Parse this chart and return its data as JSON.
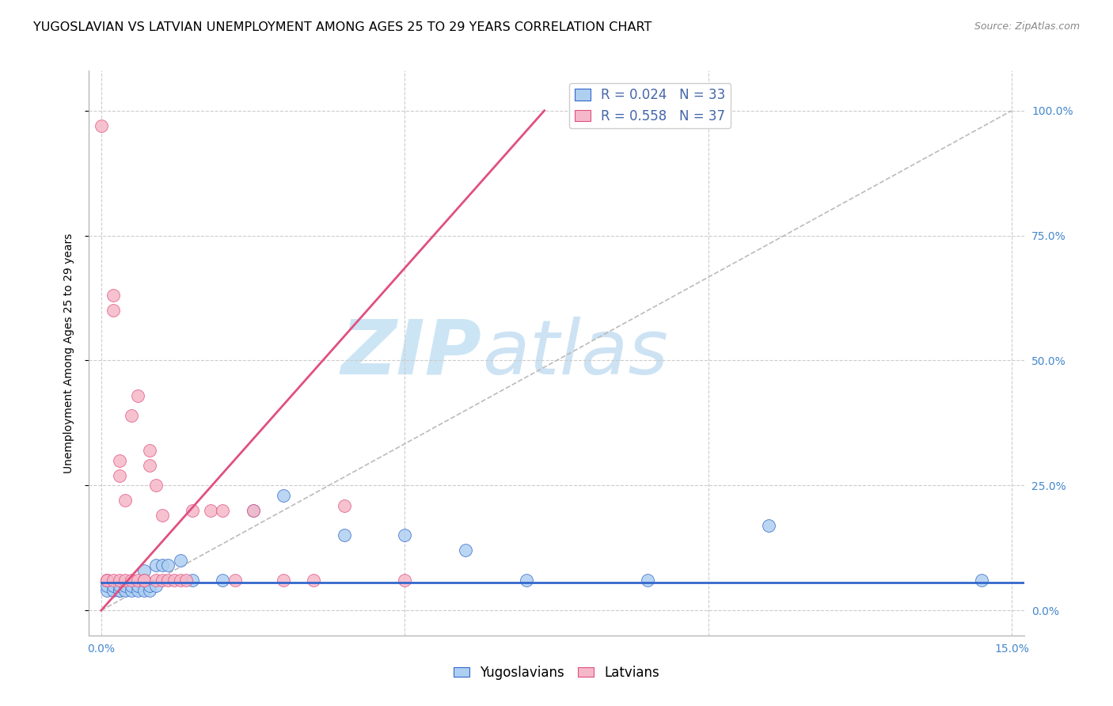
{
  "title": "YUGOSLAVIAN VS LATVIAN UNEMPLOYMENT AMONG AGES 25 TO 29 YEARS CORRELATION CHART",
  "source": "Source: ZipAtlas.com",
  "ylabel_label": "Unemployment Among Ages 25 to 29 years",
  "ylabel_ticks": [
    "0.0%",
    "25.0%",
    "50.0%",
    "75.0%",
    "100.0%"
  ],
  "ylabel_tick_values": [
    0.0,
    0.25,
    0.5,
    0.75,
    1.0
  ],
  "xlabel_ticks": [
    "0.0%",
    "15.0%"
  ],
  "xlim": [
    -0.002,
    0.152
  ],
  "ylim": [
    -0.05,
    1.08
  ],
  "legend_labels": [
    "Yugoslavians",
    "Latvians"
  ],
  "legend_R": [
    0.024,
    0.558
  ],
  "legend_N": [
    33,
    37
  ],
  "scatter_color_yug": "#aecff0",
  "scatter_color_lat": "#f5b8c8",
  "line_color_yug": "#3366cc",
  "line_color_lat": "#e05080",
  "diagonal_color": "#bbbbbb",
  "watermark_zip": "ZIP",
  "watermark_atlas": "atlas",
  "watermark_color": "#cce5f5",
  "title_fontsize": 11.5,
  "axis_label_fontsize": 10,
  "tick_fontsize": 10,
  "legend_fontsize": 12,
  "yug_x": [
    0.001,
    0.001,
    0.002,
    0.002,
    0.003,
    0.003,
    0.003,
    0.004,
    0.004,
    0.005,
    0.005,
    0.006,
    0.006,
    0.007,
    0.007,
    0.008,
    0.008,
    0.009,
    0.009,
    0.01,
    0.011,
    0.013,
    0.015,
    0.02,
    0.025,
    0.03,
    0.04,
    0.05,
    0.06,
    0.07,
    0.09,
    0.11,
    0.145
  ],
  "yug_y": [
    0.04,
    0.05,
    0.04,
    0.05,
    0.04,
    0.04,
    0.05,
    0.04,
    0.05,
    0.04,
    0.05,
    0.04,
    0.05,
    0.04,
    0.08,
    0.04,
    0.05,
    0.05,
    0.09,
    0.09,
    0.09,
    0.1,
    0.06,
    0.06,
    0.2,
    0.23,
    0.15,
    0.15,
    0.12,
    0.06,
    0.06,
    0.17,
    0.06
  ],
  "lat_x": [
    0.0,
    0.001,
    0.001,
    0.001,
    0.002,
    0.002,
    0.002,
    0.003,
    0.003,
    0.003,
    0.004,
    0.004,
    0.005,
    0.005,
    0.006,
    0.006,
    0.007,
    0.007,
    0.008,
    0.008,
    0.009,
    0.009,
    0.01,
    0.01,
    0.011,
    0.012,
    0.013,
    0.014,
    0.015,
    0.018,
    0.02,
    0.022,
    0.025,
    0.03,
    0.035,
    0.04,
    0.05
  ],
  "lat_y": [
    0.97,
    0.06,
    0.06,
    0.06,
    0.6,
    0.63,
    0.06,
    0.27,
    0.3,
    0.06,
    0.22,
    0.06,
    0.39,
    0.06,
    0.43,
    0.06,
    0.06,
    0.06,
    0.29,
    0.32,
    0.06,
    0.25,
    0.19,
    0.06,
    0.06,
    0.06,
    0.06,
    0.06,
    0.2,
    0.2,
    0.2,
    0.06,
    0.2,
    0.06,
    0.06,
    0.21,
    0.06
  ],
  "lat_line_x": [
    0.0,
    0.073
  ],
  "lat_line_y": [
    0.0,
    1.0
  ],
  "yug_line_x": [
    0.0,
    0.152
  ],
  "yug_line_y": [
    0.055,
    0.055
  ]
}
